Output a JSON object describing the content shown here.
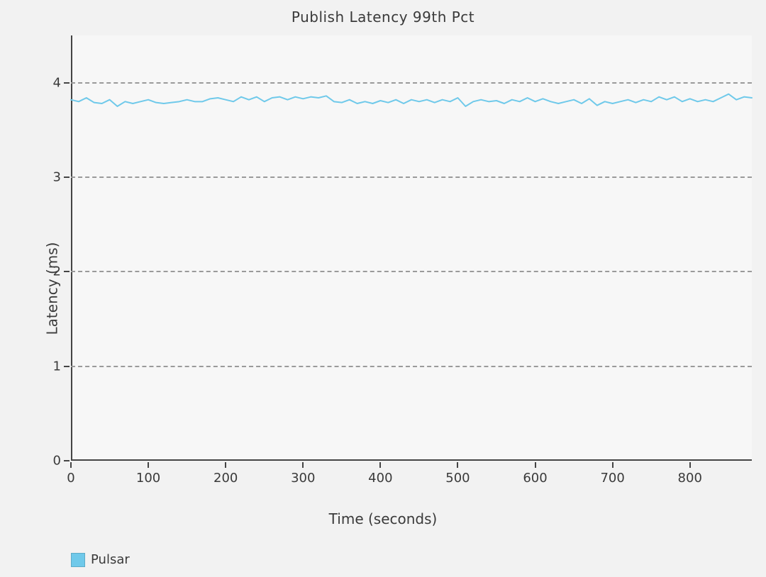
{
  "chart": {
    "type": "line",
    "title": "Publish Latency 99th Pct",
    "title_fontsize": 20,
    "xlabel": "Time (seconds)",
    "ylabel": "Latency (ms)",
    "label_fontsize": 20,
    "tick_fontsize": 18,
    "background_color": "#f2f2f2",
    "plot_background_color": "#f7f7f7",
    "axis_color": "#444444",
    "grid_color": "#9a9a9a",
    "grid_dash": "6,6",
    "text_color": "#3a3a3a",
    "xlim": [
      0,
      880
    ],
    "ylim": [
      0,
      4.5
    ],
    "xtick_step": 100,
    "xticks": [
      0,
      100,
      200,
      300,
      400,
      500,
      600,
      700,
      800
    ],
    "yticks": [
      0,
      1,
      2,
      3,
      4
    ],
    "y_gridlines": [
      1,
      2,
      3,
      4
    ],
    "line_width": 2,
    "series": [
      {
        "name": "Pulsar",
        "color": "#6fc9ea",
        "x": [
          0,
          10,
          20,
          30,
          40,
          50,
          60,
          70,
          80,
          90,
          100,
          110,
          120,
          130,
          140,
          150,
          160,
          170,
          180,
          190,
          200,
          210,
          220,
          230,
          240,
          250,
          260,
          270,
          280,
          290,
          300,
          310,
          320,
          330,
          340,
          350,
          360,
          370,
          380,
          390,
          400,
          410,
          420,
          430,
          440,
          450,
          460,
          470,
          480,
          490,
          500,
          510,
          520,
          530,
          540,
          550,
          560,
          570,
          580,
          590,
          600,
          610,
          620,
          630,
          640,
          650,
          660,
          670,
          680,
          690,
          700,
          710,
          720,
          730,
          740,
          750,
          760,
          770,
          780,
          790,
          800,
          810,
          820,
          830,
          840,
          850,
          860,
          870,
          880
        ],
        "y": [
          3.82,
          3.8,
          3.84,
          3.79,
          3.78,
          3.82,
          3.75,
          3.8,
          3.78,
          3.8,
          3.82,
          3.79,
          3.78,
          3.79,
          3.8,
          3.82,
          3.8,
          3.8,
          3.83,
          3.84,
          3.82,
          3.8,
          3.85,
          3.82,
          3.85,
          3.8,
          3.84,
          3.85,
          3.82,
          3.85,
          3.83,
          3.85,
          3.84,
          3.86,
          3.8,
          3.79,
          3.82,
          3.78,
          3.8,
          3.78,
          3.81,
          3.79,
          3.82,
          3.78,
          3.82,
          3.8,
          3.82,
          3.79,
          3.82,
          3.8,
          3.84,
          3.75,
          3.8,
          3.82,
          3.8,
          3.81,
          3.78,
          3.82,
          3.8,
          3.84,
          3.8,
          3.83,
          3.8,
          3.78,
          3.8,
          3.82,
          3.78,
          3.83,
          3.76,
          3.8,
          3.78,
          3.8,
          3.82,
          3.79,
          3.82,
          3.8,
          3.85,
          3.82,
          3.85,
          3.8,
          3.83,
          3.8,
          3.82,
          3.8,
          3.84,
          3.88,
          3.82,
          3.85,
          3.84
        ]
      }
    ],
    "legend": {
      "position": "bottom-left",
      "items": [
        {
          "label": "Pulsar",
          "color": "#6fc9ea"
        }
      ]
    }
  }
}
